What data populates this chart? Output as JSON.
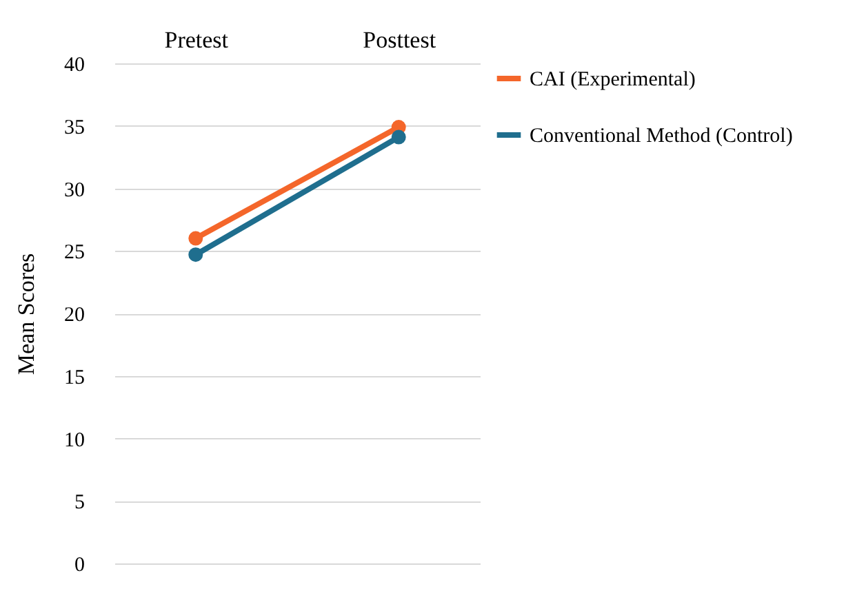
{
  "chart_data": {
    "type": "line",
    "ylabel": "Mean Scores",
    "categories": [
      "Pretest",
      "Posttest"
    ],
    "series": [
      {
        "name": "CAI (Experimental)",
        "color": "#f4662a",
        "values": [
          26,
          34.9
        ]
      },
      {
        "name": "Conventional Method (Control)",
        "color": "#1f6e8e",
        "values": [
          24.7,
          34.1
        ]
      }
    ],
    "ylim": [
      0,
      40
    ],
    "yticks": [
      0,
      5,
      10,
      15,
      20,
      25,
      30,
      35,
      40
    ],
    "grid": "y",
    "legend": "right",
    "marker": "circle",
    "line_style": "solid"
  }
}
